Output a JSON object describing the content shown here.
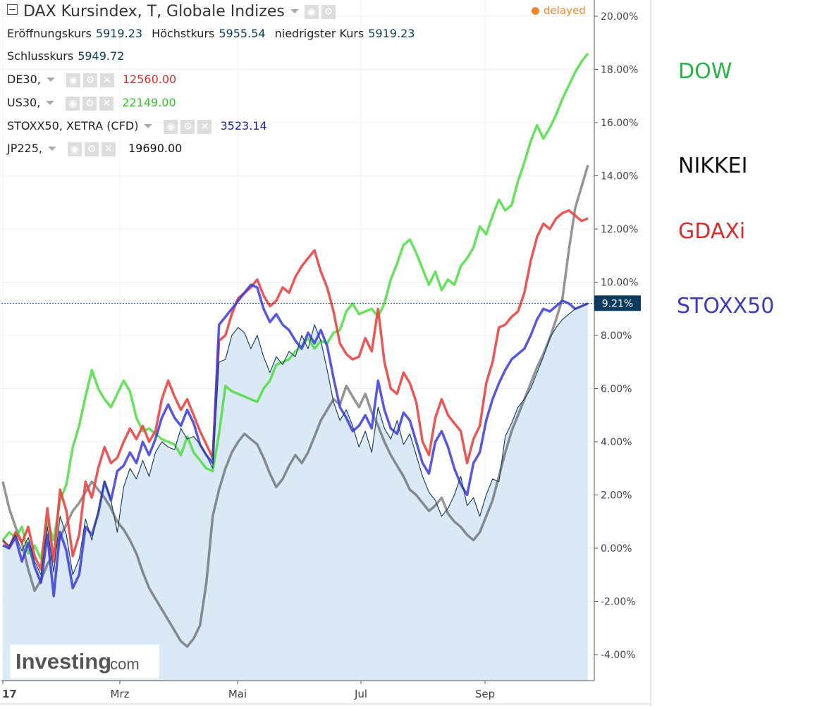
{
  "header": {
    "title": "DAX Kursindex, T, Globale Indizes",
    "delayed": "delayed",
    "ohlc": [
      {
        "label": "Eröffnungskurs",
        "value": "5919.23"
      },
      {
        "label": "Höchstkurs",
        "value": "5955.54"
      },
      {
        "label": "niedrigster Kurs",
        "value": "5919.23"
      }
    ],
    "close": {
      "label": "Schlusskurs",
      "value": "5949.72"
    }
  },
  "legend": [
    {
      "symbol": "DE30,",
      "value": "12560.00",
      "color": "#d42e2e"
    },
    {
      "symbol": "US30,",
      "value": "22149.00",
      "color": "#35c12b"
    },
    {
      "symbol": "STOXX50, XETRA (CFD)",
      "value": "3523.14",
      "color": "#1a1a9a"
    },
    {
      "symbol": "JP225,",
      "value": "19690.00",
      "color": "#111111"
    }
  ],
  "right_labels": [
    {
      "text": "DOW",
      "color": "#29b24a"
    },
    {
      "text": "NIKKEI",
      "color": "#111111"
    },
    {
      "text": "GDAXi",
      "color": "#d42e2e"
    },
    {
      "text": "STOXX50",
      "color": "#3c3cb4"
    }
  ],
  "logo": {
    "brand": "Investing",
    "suffix": ".com"
  },
  "chart_data": {
    "type": "line",
    "x_ticks": [
      "17",
      "Mrz",
      "Mai",
      "Jul",
      "Sep"
    ],
    "y_ticks": [
      "20.00%",
      "18.00%",
      "16.00%",
      "14.00%",
      "12.00%",
      "10.00%",
      "8.00%",
      "6.00%",
      "4.00%",
      "2.00%",
      "0.00%",
      "-2.00%",
      "-4.00%"
    ],
    "ylim": [
      -5.0,
      20.5
    ],
    "last_value_label": "9.21%",
    "last_value": 9.21,
    "series": [
      {
        "key": "dax",
        "color": "#1f4460",
        "width": 1.2,
        "fill": "#dbe8f6",
        "values": [
          0.3,
          0.1,
          0.5,
          -0.1,
          0.4,
          -0.5,
          -1.0,
          0.8,
          -0.9,
          1.2,
          0.5,
          -1.0,
          -0.4,
          1.1,
          0.3,
          1.4,
          2.5,
          1.8,
          0.6,
          2.3,
          3.0,
          2.6,
          3.3,
          2.7,
          3.6,
          4.0,
          3.8,
          3.7,
          4.5,
          4.1,
          4.2,
          3.9,
          3.5,
          3.0,
          7.0,
          7.1,
          8.0,
          8.3,
          8.1,
          7.5,
          8.0,
          7.2,
          6.6,
          7.2,
          6.9,
          7.4,
          7.2,
          8.0,
          7.5,
          8.4,
          7.8,
          6.7,
          5.5,
          4.8,
          5.2,
          4.6,
          3.8,
          4.4,
          3.6,
          5.3,
          4.5,
          4.1,
          4.8,
          3.9,
          4.3,
          3.5,
          2.7,
          2.1,
          1.8,
          1.2,
          1.5,
          2.0,
          2.7,
          1.6,
          1.9,
          1.2,
          2.0,
          2.6,
          2.5,
          4.2,
          4.7,
          5.3,
          5.6,
          6.0,
          6.6,
          7.2,
          7.9,
          8.3,
          8.6,
          8.8,
          9.0,
          9.1,
          9.2
        ]
      },
      {
        "key": "de30",
        "color": "#e84545",
        "width": 3.5,
        "opacity": 0.9,
        "values": [
          0.3,
          0.0,
          0.6,
          0.2,
          0.8,
          -0.3,
          -0.8,
          1.5,
          -0.5,
          2.2,
          1.4,
          -0.3,
          0.5,
          2.5,
          1.9,
          3.0,
          3.8,
          3.2,
          3.4,
          4.0,
          4.5,
          4.1,
          4.6,
          4.0,
          4.4,
          5.6,
          6.3,
          5.7,
          5.2,
          5.6,
          5.0,
          4.4,
          3.9,
          3.4,
          7.8,
          8.0,
          8.8,
          9.4,
          9.6,
          9.8,
          10.1,
          9.5,
          9.1,
          9.3,
          9.8,
          9.6,
          10.2,
          10.6,
          10.9,
          11.2,
          10.4,
          9.8,
          8.9,
          7.7,
          7.3,
          7.1,
          7.2,
          7.9,
          7.4,
          9.0,
          7.0,
          6.0,
          5.8,
          6.6,
          6.2,
          5.5,
          4.0,
          3.5,
          4.9,
          5.6,
          5.0,
          4.7,
          4.4,
          3.2,
          4.1,
          4.6,
          6.2,
          7.0,
          8.3,
          8.4,
          8.7,
          8.9,
          9.6,
          10.8,
          11.7,
          12.2,
          12.0,
          12.4,
          12.6,
          12.7,
          12.5,
          12.3,
          12.4
        ]
      },
      {
        "key": "us30",
        "color": "#4cdc42",
        "width": 3.5,
        "opacity": 0.85,
        "values": [
          0.3,
          0.6,
          0.4,
          0.8,
          -0.2,
          0.1,
          -0.4,
          1.0,
          0.3,
          1.8,
          2.4,
          3.8,
          4.6,
          5.7,
          6.7,
          6.0,
          5.6,
          5.3,
          5.8,
          6.3,
          5.9,
          4.9,
          4.4,
          4.5,
          4.3,
          4.1,
          4.0,
          3.9,
          3.5,
          4.2,
          3.6,
          3.3,
          3.0,
          2.9,
          4.3,
          6.1,
          5.9,
          5.8,
          5.7,
          5.6,
          5.5,
          6.0,
          6.3,
          6.9,
          7.0,
          7.1,
          7.4,
          7.6,
          7.9,
          7.5,
          7.8,
          7.7,
          8.1,
          8.2,
          8.9,
          9.2,
          8.8,
          8.9,
          9.0,
          8.7,
          9.2,
          10.1,
          10.7,
          11.4,
          11.6,
          11.1,
          10.5,
          9.9,
          10.4,
          9.7,
          10.1,
          9.9,
          10.6,
          10.9,
          11.3,
          12.1,
          11.8,
          12.5,
          13.1,
          12.7,
          12.9,
          13.8,
          14.5,
          15.3,
          15.9,
          15.4,
          15.8,
          16.3,
          16.9,
          17.4,
          17.9,
          18.3,
          18.6
        ]
      },
      {
        "key": "stoxx50",
        "color": "#3939d9",
        "width": 3.5,
        "opacity": 0.85,
        "values": [
          0.1,
          0.0,
          0.4,
          -0.5,
          0.2,
          -0.7,
          -1.3,
          0.5,
          -1.8,
          0.6,
          -0.1,
          -1.5,
          -1.0,
          0.8,
          0.5,
          1.3,
          2.5,
          1.8,
          2.9,
          3.1,
          3.6,
          3.2,
          4.0,
          3.5,
          4.1,
          4.9,
          5.4,
          4.9,
          4.6,
          5.2,
          4.7,
          3.9,
          3.5,
          3.2,
          8.4,
          8.7,
          9.0,
          9.3,
          9.6,
          9.9,
          9.8,
          9.0,
          8.5,
          8.8,
          8.4,
          8.2,
          7.8,
          7.5,
          8.1,
          7.7,
          8.2,
          7.6,
          6.4,
          5.3,
          4.9,
          4.4,
          4.6,
          5.0,
          4.5,
          6.3,
          5.2,
          4.5,
          4.3,
          5.1,
          4.8,
          4.0,
          3.2,
          2.8,
          4.0,
          4.4,
          3.8,
          3.0,
          2.4,
          2.0,
          3.2,
          3.6,
          4.8,
          5.6,
          6.2,
          6.7,
          7.1,
          7.3,
          7.5,
          8.0,
          8.6,
          9.0,
          8.9,
          9.1,
          9.3,
          9.2,
          9.0,
          9.1,
          9.2
        ]
      },
      {
        "key": "jp225",
        "color": "#2a2a2a",
        "width": 3.5,
        "opacity": 0.5,
        "values": [
          2.5,
          1.5,
          0.8,
          0.2,
          -0.8,
          -1.6,
          -1.2,
          -0.6,
          -0.2,
          0.4,
          0.9,
          1.4,
          1.7,
          2.1,
          2.5,
          2.2,
          1.9,
          1.5,
          1.0,
          0.7,
          0.3,
          -0.2,
          -0.9,
          -1.5,
          -1.9,
          -2.3,
          -2.7,
          -3.1,
          -3.5,
          -3.7,
          -3.4,
          -2.9,
          -1.3,
          1.2,
          2.2,
          3.0,
          3.6,
          4.0,
          4.3,
          4.1,
          3.9,
          3.4,
          2.8,
          2.3,
          2.6,
          3.1,
          3.5,
          3.2,
          3.6,
          4.2,
          4.8,
          5.2,
          5.6,
          5.4,
          6.1,
          5.7,
          5.3,
          5.8,
          5.1,
          4.6,
          4.0,
          3.5,
          3.1,
          2.7,
          2.2,
          2.0,
          1.7,
          1.4,
          1.6,
          1.9,
          1.3,
          1.0,
          0.8,
          0.5,
          0.3,
          0.6,
          1.2,
          1.8,
          2.7,
          3.6,
          4.4,
          5.0,
          5.6,
          6.2,
          6.8,
          7.3,
          7.9,
          8.6,
          9.4,
          11.2,
          12.8,
          13.6,
          14.4
        ]
      }
    ]
  }
}
